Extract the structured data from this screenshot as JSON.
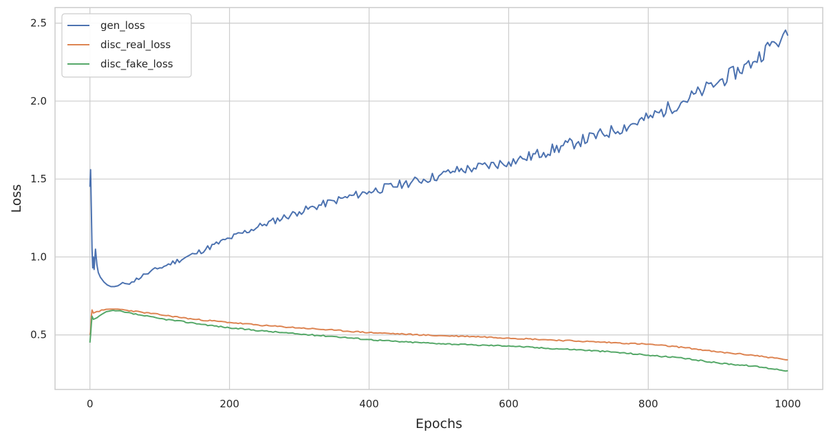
{
  "chart_data": {
    "type": "line",
    "title": "",
    "xlabel": "Epochs",
    "ylabel": "Loss",
    "xlim": [
      -50,
      1050
    ],
    "ylim": [
      0.15,
      2.6
    ],
    "xticks": [
      0,
      200,
      400,
      600,
      800,
      1000
    ],
    "yticks": [
      0.5,
      1.0,
      1.5,
      2.0,
      2.5
    ],
    "xtick_labels": [
      "0",
      "200",
      "400",
      "600",
      "800",
      "1000"
    ],
    "ytick_labels": [
      "0.5",
      "1.0",
      "1.5",
      "2.0",
      "2.5"
    ],
    "grid": true,
    "legend_position": "top-left",
    "series": [
      {
        "name": "gen_loss",
        "color": "#4c72b0",
        "x": [
          0,
          1,
          2,
          3,
          4,
          5,
          6,
          8,
          10,
          12,
          15,
          20,
          25,
          30,
          35,
          40,
          50,
          60,
          80,
          100,
          150,
          200,
          250,
          300,
          350,
          400,
          450,
          500,
          520,
          550,
          600,
          620,
          650,
          700,
          750,
          800,
          850,
          880,
          900,
          950,
          980,
          990,
          1000
        ],
        "y": [
          1.45,
          1.56,
          1.3,
          1.05,
          0.93,
          1.0,
          0.92,
          1.05,
          0.95,
          0.9,
          0.87,
          0.84,
          0.82,
          0.81,
          0.81,
          0.815,
          0.83,
          0.84,
          0.89,
          0.93,
          1.02,
          1.12,
          1.21,
          1.29,
          1.36,
          1.42,
          1.47,
          1.52,
          1.55,
          1.57,
          1.61,
          1.63,
          1.67,
          1.74,
          1.81,
          1.89,
          2.0,
          2.07,
          2.12,
          2.25,
          2.38,
          2.39,
          2.42
        ]
      },
      {
        "name": "disc_real_loss",
        "color": "#dd8452",
        "x": [
          0,
          1,
          2,
          3,
          5,
          10,
          20,
          30,
          40,
          50,
          75,
          100,
          150,
          200,
          250,
          300,
          350,
          400,
          450,
          500,
          550,
          600,
          650,
          700,
          750,
          800,
          850,
          900,
          950,
          1000
        ],
        "y": [
          0.5,
          0.52,
          0.62,
          0.66,
          0.64,
          0.65,
          0.66,
          0.665,
          0.665,
          0.66,
          0.645,
          0.63,
          0.6,
          0.58,
          0.56,
          0.545,
          0.53,
          0.515,
          0.505,
          0.495,
          0.49,
          0.48,
          0.47,
          0.46,
          0.45,
          0.44,
          0.42,
          0.39,
          0.37,
          0.34
        ]
      },
      {
        "name": "disc_fake_loss",
        "color": "#55a868",
        "x": [
          0,
          1,
          2,
          3,
          5,
          10,
          20,
          30,
          40,
          50,
          75,
          100,
          150,
          200,
          250,
          300,
          350,
          400,
          450,
          500,
          550,
          600,
          650,
          700,
          750,
          800,
          850,
          900,
          950,
          1000
        ],
        "y": [
          0.45,
          0.5,
          0.57,
          0.62,
          0.6,
          0.61,
          0.64,
          0.655,
          0.655,
          0.645,
          0.625,
          0.605,
          0.575,
          0.545,
          0.525,
          0.505,
          0.49,
          0.47,
          0.455,
          0.445,
          0.435,
          0.43,
          0.415,
          0.405,
          0.39,
          0.37,
          0.35,
          0.32,
          0.3,
          0.27
        ]
      }
    ]
  }
}
